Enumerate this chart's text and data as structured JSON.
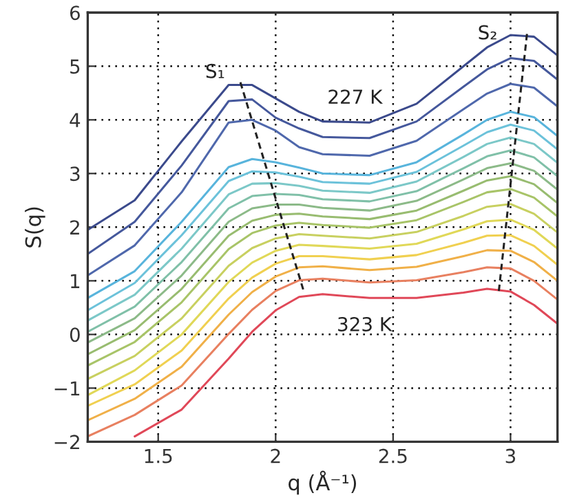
{
  "chart_data": {
    "type": "line",
    "xlabel": "q (Å⁻¹)",
    "ylabel": "S(q)",
    "x": [
      1.2,
      1.4,
      1.6,
      1.8,
      1.9,
      2.0,
      2.1,
      2.2,
      2.4,
      2.6,
      2.8,
      2.9,
      3.0,
      3.1,
      3.2
    ],
    "series": [
      {
        "color": "#3b4a8c",
        "values": [
          1.95,
          2.5,
          3.6,
          4.65,
          4.65,
          4.4,
          4.15,
          3.97,
          3.95,
          4.3,
          5.0,
          5.35,
          5.58,
          5.55,
          5.2
        ]
      },
      {
        "color": "#45589c",
        "values": [
          1.5,
          2.1,
          3.15,
          4.35,
          4.38,
          4.04,
          3.84,
          3.68,
          3.66,
          3.97,
          4.62,
          4.94,
          5.15,
          5.1,
          4.75
        ]
      },
      {
        "color": "#4f68ac",
        "values": [
          1.1,
          1.66,
          2.65,
          3.95,
          4.0,
          3.8,
          3.49,
          3.36,
          3.33,
          3.61,
          4.2,
          4.49,
          4.67,
          4.6,
          4.25
        ]
      },
      {
        "color": "#58b4dc",
        "values": [
          0.68,
          1.18,
          2.1,
          3.12,
          3.27,
          3.21,
          3.11,
          3.0,
          2.97,
          3.21,
          3.73,
          4.0,
          4.15,
          4.05,
          3.7
        ]
      },
      {
        "color": "#6cc2da",
        "values": [
          0.45,
          0.96,
          1.85,
          2.86,
          3.04,
          3.02,
          2.94,
          2.84,
          2.81,
          3.03,
          3.52,
          3.77,
          3.91,
          3.8,
          3.45
        ]
      },
      {
        "color": "#7cc8c8",
        "values": [
          0.26,
          0.74,
          1.6,
          2.61,
          2.81,
          2.82,
          2.77,
          2.68,
          2.64,
          2.85,
          3.31,
          3.55,
          3.67,
          3.55,
          3.2
        ]
      },
      {
        "color": "#80c0a8",
        "values": [
          0.05,
          0.52,
          1.35,
          2.35,
          2.58,
          2.62,
          2.6,
          2.52,
          2.48,
          2.67,
          3.1,
          3.32,
          3.43,
          3.3,
          2.95
        ]
      },
      {
        "color": "#8cba88",
        "values": [
          -0.15,
          0.3,
          1.1,
          2.1,
          2.35,
          2.42,
          2.42,
          2.36,
          2.31,
          2.49,
          2.89,
          3.1,
          3.19,
          3.05,
          2.7
        ]
      },
      {
        "color": "#98bc70",
        "values": [
          -0.37,
          0.08,
          0.85,
          1.84,
          2.12,
          2.23,
          2.25,
          2.2,
          2.15,
          2.31,
          2.68,
          2.87,
          2.95,
          2.8,
          2.45
        ]
      },
      {
        "color": "#a8c468",
        "values": [
          -0.58,
          -0.14,
          0.6,
          1.59,
          1.89,
          2.03,
          2.08,
          2.04,
          1.99,
          2.13,
          2.47,
          2.65,
          2.71,
          2.55,
          2.2
        ]
      },
      {
        "color": "#c8d060",
        "values": [
          -0.83,
          -0.4,
          0.3,
          1.28,
          1.61,
          1.79,
          1.87,
          1.84,
          1.79,
          1.91,
          2.21,
          2.38,
          2.43,
          2.25,
          1.9
        ]
      },
      {
        "color": "#e0d858",
        "values": [
          -1.13,
          -0.67,
          0.0,
          0.98,
          1.34,
          1.56,
          1.67,
          1.65,
          1.6,
          1.69,
          1.96,
          2.11,
          2.14,
          1.95,
          1.6
        ]
      },
      {
        "color": "#f0d050",
        "values": [
          -1.33,
          -0.93,
          -0.3,
          0.67,
          1.06,
          1.32,
          1.46,
          1.46,
          1.4,
          1.48,
          1.71,
          1.84,
          1.85,
          1.65,
          1.3
        ]
      },
      {
        "color": "#f0b048",
        "values": [
          -1.6,
          -1.2,
          -0.6,
          0.37,
          0.79,
          1.08,
          1.25,
          1.27,
          1.2,
          1.26,
          1.46,
          1.57,
          1.56,
          1.35,
          1.0
        ]
      },
      {
        "color": "#e88060",
        "values": [
          -1.9,
          -1.5,
          -0.95,
          0.01,
          0.46,
          0.81,
          1.01,
          1.04,
          0.97,
          1.01,
          1.16,
          1.25,
          1.23,
          1.0,
          0.65
        ]
      },
      {
        "color": "#e04858",
        "values": [
          null,
          -1.9,
          -1.4,
          -0.45,
          0.05,
          0.45,
          0.7,
          0.75,
          0.68,
          0.68,
          0.78,
          0.85,
          0.8,
          0.55,
          0.2
        ]
      },
      {
        "type": "line",
        "color": "#222222",
        "line_style": "dashed",
        "x": [
          1.85,
          2.12
        ],
        "values": [
          4.7,
          0.8
        ]
      },
      {
        "type": "line",
        "color": "#222222",
        "line_style": "dashed",
        "x": [
          3.07,
          2.95
        ],
        "values": [
          5.6,
          0.8
        ]
      }
    ],
    "annotations": [
      "S₁",
      "S₂",
      "227 K",
      "323 K"
    ],
    "xlim": [
      1.2,
      3.2
    ],
    "xticks": [
      1.5,
      2,
      2.5,
      3
    ],
    "ylim": [
      -2,
      6
    ],
    "yticks": [
      {
        "value": -2,
        "label": "−2"
      },
      {
        "value": -1,
        "label": "−1"
      },
      0,
      1,
      2,
      3,
      4,
      5,
      6
    ],
    "grid": true
  }
}
